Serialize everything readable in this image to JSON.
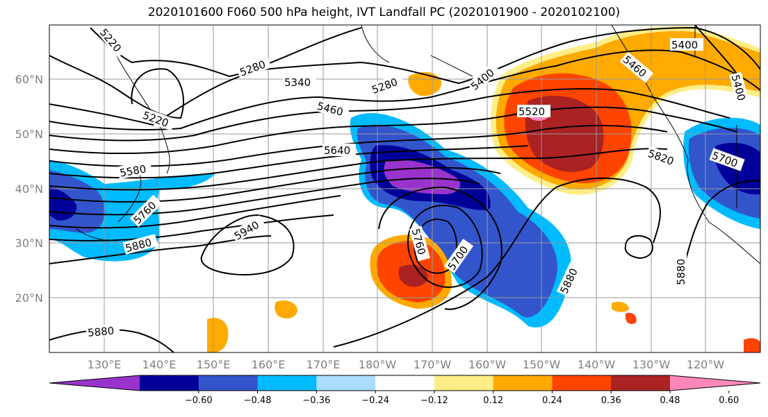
{
  "title": "2020101600 F060 500 hPa height, IVT Landfall PC (2020101900 - 2020102100)",
  "lat_labels": [
    "60°N",
    "50°N",
    "40°N",
    "30°N",
    "20°N"
  ],
  "lon_labels": [
    "130°E",
    "140°E",
    "150°E",
    "160°E",
    "170°E",
    "180°W",
    "170°W",
    "160°W",
    "150°W",
    "140°W",
    "130°W",
    "120°W"
  ],
  "contour_labels": [
    "5220",
    "5280",
    "5340",
    "5220",
    "5460",
    "5280",
    "5400",
    "5400",
    "5460",
    "5400",
    "5520",
    "5580",
    "5640",
    "5700",
    "5820",
    "5760",
    "5880",
    "5940",
    "5760",
    "5700",
    "5880",
    "5880",
    "5880"
  ],
  "colorbar": {
    "colors": [
      "#9933cc",
      "#000099",
      "#3355cc",
      "#00bbff",
      "#aaddff",
      "#ffffff",
      "#ffee88",
      "#ffaa00",
      "#ff4400",
      "#aa2222",
      "#ff88bb"
    ],
    "tick_labels": [
      "−0.60",
      "−0.48",
      "−0.36",
      "−0.24",
      "−0.12",
      "0.12",
      "0.24",
      "0.36",
      "0.48",
      "0.60"
    ]
  }
}
